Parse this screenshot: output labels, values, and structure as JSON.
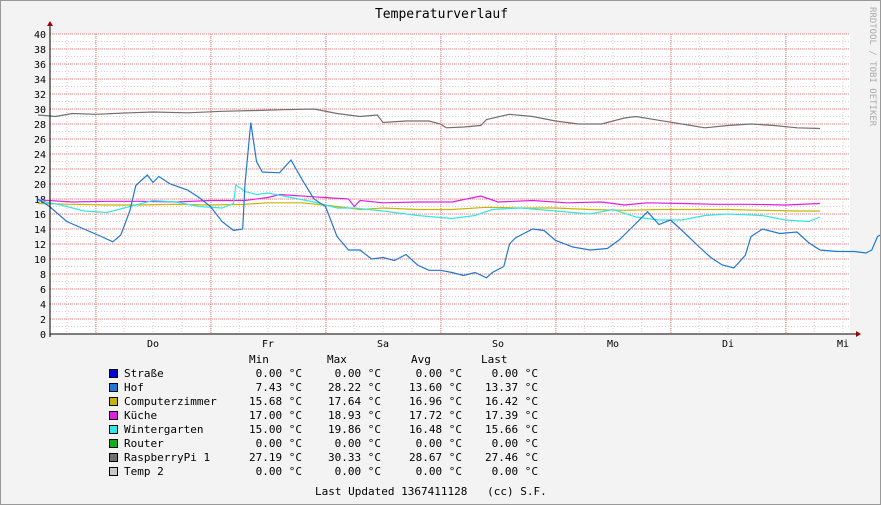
{
  "title": "Temperaturverlauf",
  "watermark": "RRDTOOL / TOBI OETIKER",
  "legend_headers": {
    "min": "Min",
    "max": "Max",
    "avg": "Avg",
    "last": "Last"
  },
  "legend": [
    {
      "name": "Straße",
      "color": "#0000d0",
      "min": "0.00 °C",
      "max": "0.00 °C",
      "avg": "0.00 °C",
      "last": "0.00 °C"
    },
    {
      "name": "Hof",
      "color": "#1e78d4",
      "min": "7.43 °C",
      "max": "28.22 °C",
      "avg": "13.60 °C",
      "last": "13.37 °C"
    },
    {
      "name": "Computerzimmer",
      "color": "#c8b400",
      "min": "15.68 °C",
      "max": "17.64 °C",
      "avg": "16.96 °C",
      "last": "16.42 °C"
    },
    {
      "name": "Küche",
      "color": "#e020e0",
      "min": "17.00 °C",
      "max": "18.93 °C",
      "avg": "17.72 °C",
      "last": "17.39 °C"
    },
    {
      "name": "Wintergarten",
      "color": "#30e8e8",
      "min": "15.00 °C",
      "max": "19.86 °C",
      "avg": "16.48 °C",
      "last": "15.66 °C"
    },
    {
      "name": "Router",
      "color": "#10b010",
      "min": "0.00 °C",
      "max": "0.00 °C",
      "avg": "0.00 °C",
      "last": "0.00 °C"
    },
    {
      "name": "RaspberryPi 1",
      "color": "#707070",
      "min": "27.19 °C",
      "max": "30.33 °C",
      "avg": "28.67 °C",
      "last": "27.46 °C"
    },
    {
      "name": "Temp 2",
      "color": "#c8c8c8",
      "min": "0.00 °C",
      "max": "0.00 °C",
      "avg": "0.00 °C",
      "last": "0.00 °C"
    }
  ],
  "footer": "Last Updated 1367411128   (cc) S.F.",
  "chart_data": {
    "type": "line",
    "title": "Temperaturverlauf",
    "ylim": [
      0,
      40
    ],
    "yticks": [
      0,
      2,
      4,
      6,
      8,
      10,
      12,
      14,
      16,
      18,
      20,
      22,
      24,
      26,
      28,
      30,
      32,
      34,
      36,
      38,
      40
    ],
    "xlim": [
      0,
      7
    ],
    "xticks": [
      {
        "label": "Do",
        "x": 1
      },
      {
        "label": "Fr",
        "x": 2
      },
      {
        "label": "Sa",
        "x": 3
      },
      {
        "label": "So",
        "x": 4
      },
      {
        "label": "Mo",
        "x": 5
      },
      {
        "label": "Di",
        "x": 6
      },
      {
        "label": "Mi",
        "x": 7
      }
    ],
    "grid": true,
    "series": [
      {
        "name": "RaspberryPi 1",
        "color": "#707070",
        "points": [
          [
            0,
            29.2
          ],
          [
            0.15,
            29.0
          ],
          [
            0.3,
            29.4
          ],
          [
            0.5,
            29.3
          ],
          [
            0.8,
            29.5
          ],
          [
            1.0,
            29.6
          ],
          [
            1.3,
            29.5
          ],
          [
            1.6,
            29.7
          ],
          [
            1.9,
            29.8
          ],
          [
            2.1,
            29.9
          ],
          [
            2.4,
            30.0
          ],
          [
            2.6,
            29.4
          ],
          [
            2.8,
            29.0
          ],
          [
            2.95,
            29.2
          ],
          [
            3.0,
            28.2
          ],
          [
            3.2,
            28.4
          ],
          [
            3.4,
            28.4
          ],
          [
            3.5,
            28.0
          ],
          [
            3.55,
            27.5
          ],
          [
            3.7,
            27.6
          ],
          [
            3.85,
            27.8
          ],
          [
            3.9,
            28.6
          ],
          [
            4.1,
            29.3
          ],
          [
            4.3,
            29.0
          ],
          [
            4.5,
            28.4
          ],
          [
            4.7,
            28.0
          ],
          [
            4.9,
            28.0
          ],
          [
            5.1,
            28.8
          ],
          [
            5.2,
            29.0
          ],
          [
            5.4,
            28.5
          ],
          [
            5.6,
            28.0
          ],
          [
            5.8,
            27.5
          ],
          [
            6.0,
            27.8
          ],
          [
            6.2,
            28.0
          ],
          [
            6.4,
            27.8
          ],
          [
            6.6,
            27.5
          ],
          [
            6.8,
            27.4
          ]
        ]
      },
      {
        "name": "Küche",
        "color": "#e020e0",
        "points": [
          [
            0,
            17.9
          ],
          [
            0.3,
            17.6
          ],
          [
            0.6,
            17.7
          ],
          [
            0.9,
            17.7
          ],
          [
            1.2,
            17.6
          ],
          [
            1.5,
            17.8
          ],
          [
            1.8,
            17.8
          ],
          [
            2.0,
            18.2
          ],
          [
            2.1,
            18.6
          ],
          [
            2.4,
            18.3
          ],
          [
            2.7,
            18.0
          ],
          [
            2.75,
            17.0
          ],
          [
            2.8,
            17.8
          ],
          [
            3.0,
            17.5
          ],
          [
            3.3,
            17.6
          ],
          [
            3.6,
            17.6
          ],
          [
            3.85,
            18.4
          ],
          [
            4.0,
            17.6
          ],
          [
            4.3,
            17.8
          ],
          [
            4.6,
            17.5
          ],
          [
            4.9,
            17.6
          ],
          [
            5.1,
            17.2
          ],
          [
            5.3,
            17.5
          ],
          [
            5.6,
            17.4
          ],
          [
            5.9,
            17.3
          ],
          [
            6.2,
            17.3
          ],
          [
            6.5,
            17.2
          ],
          [
            6.8,
            17.4
          ]
        ]
      },
      {
        "name": "Computerzimmer",
        "color": "#c8b400",
        "points": [
          [
            0,
            17.4
          ],
          [
            0.3,
            17.3
          ],
          [
            0.6,
            17.2
          ],
          [
            0.9,
            17.2
          ],
          [
            1.2,
            17.3
          ],
          [
            1.5,
            17.2
          ],
          [
            1.8,
            17.3
          ],
          [
            2.0,
            17.5
          ],
          [
            2.3,
            17.5
          ],
          [
            2.6,
            17.0
          ],
          [
            2.8,
            16.6
          ],
          [
            3.0,
            16.8
          ],
          [
            3.3,
            16.6
          ],
          [
            3.6,
            16.6
          ],
          [
            3.9,
            16.9
          ],
          [
            4.2,
            16.8
          ],
          [
            4.5,
            16.8
          ],
          [
            4.8,
            16.6
          ],
          [
            5.1,
            16.5
          ],
          [
            5.4,
            16.6
          ],
          [
            5.7,
            16.6
          ],
          [
            6.0,
            16.6
          ],
          [
            6.3,
            16.5
          ],
          [
            6.6,
            16.4
          ],
          [
            6.8,
            16.4
          ]
        ]
      },
      {
        "name": "Wintergarten",
        "color": "#30e8e8",
        "points": [
          [
            0,
            17.8
          ],
          [
            0.2,
            17.2
          ],
          [
            0.4,
            16.4
          ],
          [
            0.6,
            16.2
          ],
          [
            0.8,
            17.0
          ],
          [
            1.0,
            17.8
          ],
          [
            1.2,
            17.6
          ],
          [
            1.4,
            17.0
          ],
          [
            1.6,
            16.8
          ],
          [
            1.7,
            17.4
          ],
          [
            1.72,
            19.9
          ],
          [
            1.8,
            19.0
          ],
          [
            1.9,
            18.6
          ],
          [
            2.0,
            18.8
          ],
          [
            2.2,
            18.2
          ],
          [
            2.4,
            17.6
          ],
          [
            2.6,
            16.8
          ],
          [
            2.75,
            16.8
          ],
          [
            3.0,
            16.4
          ],
          [
            3.3,
            15.8
          ],
          [
            3.6,
            15.4
          ],
          [
            3.8,
            15.8
          ],
          [
            3.95,
            16.6
          ],
          [
            4.2,
            16.8
          ],
          [
            4.5,
            16.4
          ],
          [
            4.8,
            16.0
          ],
          [
            5.0,
            16.6
          ],
          [
            5.2,
            15.6
          ],
          [
            5.4,
            15.2
          ],
          [
            5.6,
            15.2
          ],
          [
            5.8,
            15.8
          ],
          [
            6.0,
            16.0
          ],
          [
            6.3,
            15.8
          ],
          [
            6.5,
            15.2
          ],
          [
            6.7,
            15.0
          ],
          [
            6.8,
            15.6
          ]
        ]
      },
      {
        "name": "Hof",
        "color": "#1e78d4",
        "points": [
          [
            0,
            18.0
          ],
          [
            0.1,
            17.0
          ],
          [
            0.25,
            15.0
          ],
          [
            0.4,
            14.0
          ],
          [
            0.55,
            13.0
          ],
          [
            0.65,
            12.3
          ],
          [
            0.72,
            13.2
          ],
          [
            0.8,
            16.5
          ],
          [
            0.85,
            19.8
          ],
          [
            0.95,
            21.2
          ],
          [
            1.0,
            20.2
          ],
          [
            1.05,
            21.0
          ],
          [
            1.15,
            20.0
          ],
          [
            1.3,
            19.2
          ],
          [
            1.4,
            18.2
          ],
          [
            1.5,
            17.0
          ],
          [
            1.6,
            15.0
          ],
          [
            1.7,
            13.8
          ],
          [
            1.78,
            14.0
          ],
          [
            1.8,
            20.0
          ],
          [
            1.85,
            28.2
          ],
          [
            1.9,
            23.0
          ],
          [
            1.95,
            21.6
          ],
          [
            2.1,
            21.5
          ],
          [
            2.2,
            23.2
          ],
          [
            2.3,
            20.5
          ],
          [
            2.4,
            18.0
          ],
          [
            2.5,
            17.0
          ],
          [
            2.6,
            13.0
          ],
          [
            2.7,
            11.2
          ],
          [
            2.8,
            11.2
          ],
          [
            2.9,
            10.0
          ],
          [
            3.0,
            10.2
          ],
          [
            3.1,
            9.8
          ],
          [
            3.2,
            10.6
          ],
          [
            3.3,
            9.2
          ],
          [
            3.4,
            8.5
          ],
          [
            3.5,
            8.5
          ],
          [
            3.6,
            8.2
          ],
          [
            3.7,
            7.8
          ],
          [
            3.8,
            8.2
          ],
          [
            3.9,
            7.5
          ],
          [
            3.95,
            8.2
          ],
          [
            4.05,
            9.0
          ],
          [
            4.1,
            12.0
          ],
          [
            4.15,
            12.8
          ],
          [
            4.3,
            14.0
          ],
          [
            4.4,
            13.8
          ],
          [
            4.5,
            12.5
          ],
          [
            4.65,
            11.6
          ],
          [
            4.8,
            11.2
          ],
          [
            4.95,
            11.4
          ],
          [
            5.05,
            12.5
          ],
          [
            5.15,
            14.0
          ],
          [
            5.3,
            16.3
          ],
          [
            5.4,
            14.6
          ],
          [
            5.5,
            15.2
          ],
          [
            5.6,
            13.8
          ],
          [
            5.75,
            11.6
          ],
          [
            5.85,
            10.2
          ],
          [
            5.95,
            9.2
          ],
          [
            6.05,
            8.8
          ],
          [
            6.15,
            10.5
          ],
          [
            6.2,
            13.0
          ],
          [
            6.3,
            14.0
          ],
          [
            6.45,
            13.4
          ],
          [
            6.6,
            13.6
          ],
          [
            6.7,
            12.2
          ],
          [
            6.8,
            11.2
          ],
          [
            6.95,
            11.0
          ],
          [
            7.1,
            11.0
          ],
          [
            7.2,
            10.8
          ],
          [
            7.25,
            11.2
          ],
          [
            7.3,
            13.0
          ],
          [
            7.35,
            13.4
          ]
        ]
      }
    ]
  }
}
